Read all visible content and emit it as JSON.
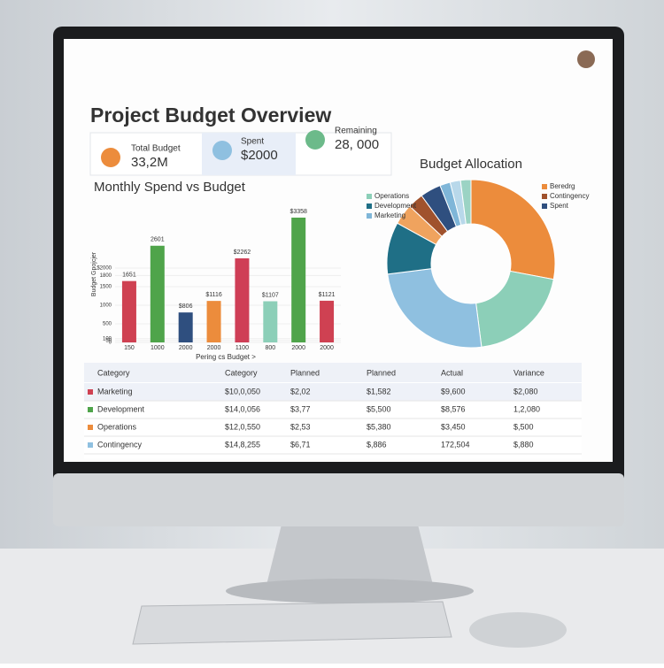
{
  "header": {
    "title": "Project Budget Overview"
  },
  "kpis": [
    {
      "label": "Total Budget",
      "value": "33,2M"
    },
    {
      "label": "Spent",
      "value": "$2000"
    },
    {
      "label": "Remaining",
      "value": "28, 000"
    }
  ],
  "chart_data": [
    {
      "type": "bar",
      "title": "Monthly Spend vs Budget",
      "y_label": "Budget Gpojcjer",
      "x_label": "Pering cs Budget >",
      "categories": [
        "150",
        "1000",
        "2000",
        "2000",
        "1100",
        "800",
        "2000",
        "2000"
      ],
      "values": [
        1651,
        2601,
        806,
        1116,
        2262,
        1107,
        3358,
        1121
      ],
      "value_labels": [
        "1651",
        "2601",
        "$806",
        "$1116",
        "$2262",
        "$1107",
        "$3358",
        "$1121"
      ],
      "colors": [
        "#cf4152",
        "#4fa44a",
        "#2f4f7f",
        "#ec8c3c",
        "#cf3e56",
        "#8ccfb8",
        "#4fa44a",
        "#cf4152"
      ],
      "ylim": [
        0,
        3500
      ],
      "yticks": [
        0,
        50,
        100,
        500,
        1000,
        1500,
        1800,
        {
          "value": 2000,
          "label": "$2000"
        }
      ]
    },
    {
      "type": "pie",
      "title": "Budget Allocation",
      "categories": [
        "Beredrg",
        "Operations",
        null,
        "Development",
        null,
        "Contingency",
        "Spent",
        "Marketing",
        null,
        null
      ],
      "values": [
        28,
        20,
        25,
        10,
        4,
        3,
        4,
        2,
        2,
        2
      ],
      "colors": [
        "#ec8c3c",
        "#8ccfb8",
        "#8fc0e0",
        "#1f6f86",
        "#f0a35e",
        "#a0522d",
        "#2f4f7f",
        "#7fb6d8",
        "#b8d8ea",
        "#9bd3c4"
      ]
    }
  ],
  "table": {
    "headers": [
      "Category",
      "Category",
      "Planned",
      "Planned",
      "Actual",
      "Variance"
    ],
    "rows": [
      [
        "Marketing",
        "$10,0,050",
        "$2,02",
        "$1,582",
        "$9,600",
        "$2,080"
      ],
      [
        "Development",
        "$14,0,056",
        "$3,77",
        "$5,500",
        "$8,576",
        "1,2,080"
      ],
      [
        "Operations",
        "$12,0,550",
        "$2,53",
        "$5,380",
        "$3,450",
        "$,500"
      ],
      [
        "Contingency",
        "$14,8,255",
        "$6,71",
        "$,886",
        "172,504",
        "$,880"
      ]
    ],
    "row_colors": [
      "#cf4152",
      "#4fa44a",
      "#ec8c3c",
      "#8fc0e0"
    ]
  }
}
